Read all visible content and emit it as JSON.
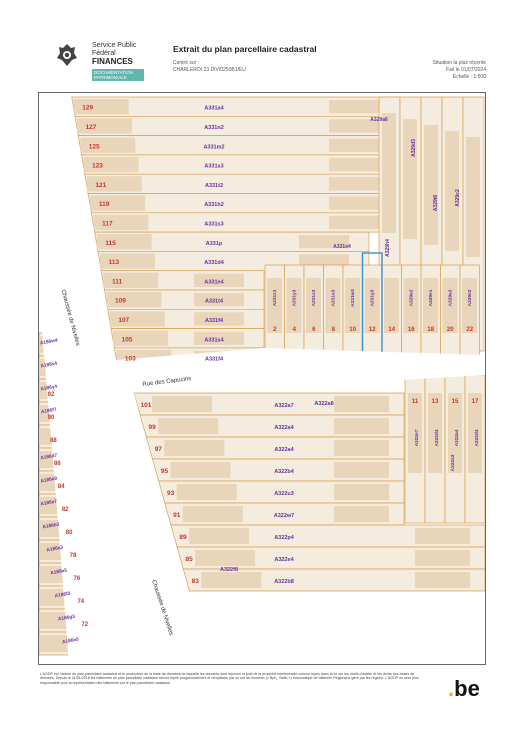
{
  "header": {
    "org_line1": "Service Public",
    "org_line2": "Fédéral",
    "org_line3": "FINANCES",
    "org_tag": "DOCUMENTATION PATRIMONIALE",
    "title": "Extrait du plan parcellaire cadastral",
    "centered_label": "Centré sur :",
    "centered_value": "CHARLEROI 23 DIV/0250B1/EU",
    "situation": "Situation la plus récente",
    "date": "Fait le 01/07/2024",
    "scale": "Échelle : 1:500"
  },
  "map": {
    "colors": {
      "parcel_fill": "#f4ecdf",
      "building_fill": "#e9d5b9",
      "parcel_line": "#d9a052",
      "road": "#ffffff",
      "number_color": "#c0392b",
      "id_color": "#6b2fa0",
      "highlight": "#3d8ec9"
    },
    "streets": [
      "Chaussée de Nivelles",
      "Rue des Capucins",
      "Chaussée de Nivelles"
    ],
    "top_rows": [
      {
        "num": "129",
        "id": "A331a4"
      },
      {
        "num": "127",
        "id": "A331n2"
      },
      {
        "num": "125",
        "id": "A331m2"
      },
      {
        "num": "123",
        "id": "A331s3"
      },
      {
        "num": "121",
        "id": "A331t2"
      },
      {
        "num": "119",
        "id": "A331h2"
      },
      {
        "num": "117",
        "id": "A331s3"
      },
      {
        "num": "115",
        "id": "A331p"
      },
      {
        "num": "113",
        "id": "A331d4"
      },
      {
        "num": "111",
        "id": "A331e4"
      },
      {
        "num": "109",
        "id": "A331t4"
      },
      {
        "num": "107",
        "id": "A331f4"
      },
      {
        "num": "105",
        "id": "A331s4"
      },
      {
        "num": "103",
        "id": "A331f4"
      }
    ],
    "mid_ids": [
      "A329a6",
      "A331e4",
      "A329h4"
    ],
    "capucins_lots": [
      {
        "num": "2",
        "id": "A331z3"
      },
      {
        "num": "4",
        "id": "A331y3"
      },
      {
        "num": "6",
        "id": "A331x3"
      },
      {
        "num": "8",
        "id": "A331v3"
      },
      {
        "num": "10",
        "id": "A331w3"
      },
      {
        "num": "12",
        "id": "A331y3"
      },
      {
        "num": "14",
        "id": ""
      },
      {
        "num": "16",
        "id": "A329e2"
      },
      {
        "num": "18",
        "id": "A329e1"
      },
      {
        "num": "20",
        "id": "A329e2"
      },
      {
        "num": "22",
        "id": "A329e2"
      }
    ],
    "top_right_ids": [
      "A329d3",
      "A329t6",
      "A329c2"
    ],
    "lower_rows": [
      {
        "num": "101",
        "id": "A322a7"
      },
      {
        "num": "99",
        "id": "A322a4"
      },
      {
        "num": "97",
        "id": "A322a4"
      },
      {
        "num": "95",
        "id": "A322b4"
      },
      {
        "num": "93",
        "id": "A322u3"
      },
      {
        "num": "91",
        "id": "A322w7"
      },
      {
        "num": "89",
        "id": "A322p4"
      },
      {
        "num": "85",
        "id": "A322e4"
      },
      {
        "num": "83",
        "id": "A322b8"
      }
    ],
    "lower_extra": {
      "top_id": "A322a8",
      "side_id": "A322f8"
    },
    "right_lower": [
      {
        "num": "11",
        "id": "A322e7"
      },
      {
        "num": "13",
        "id": "A322d4"
      },
      {
        "num": "15",
        "id": "A322a4"
      },
      {
        "num": "17",
        "id": "A322d4"
      }
    ],
    "right_lower_extra": "A322a3",
    "left_strip": [
      {
        "num": "",
        "id": "A186w4"
      },
      {
        "num": "",
        "id": "A186x4"
      },
      {
        "num": "92",
        "id": "A186y4"
      },
      {
        "num": "90",
        "id": "A186f7"
      },
      {
        "num": "88",
        "id": ""
      },
      {
        "num": "86",
        "id": "A186d7"
      },
      {
        "num": "84",
        "id": "A186a9"
      },
      {
        "num": "82",
        "id": "A186e7"
      },
      {
        "num": "80",
        "id": "A186b3"
      },
      {
        "num": "78",
        "id": "A186a3"
      },
      {
        "num": "76",
        "id": "A186e5"
      },
      {
        "num": "74",
        "id": "A186f3"
      },
      {
        "num": "72",
        "id": "A186g3"
      },
      {
        "num": "",
        "id": "A186e5"
      }
    ]
  },
  "footer": {
    "disclaimer": "L'AGDP est l'auteur du plan parcellaire cadastral et le producteur de la base de données de laquelle les données sont reprises et jouit de la propriété intellectuelle comme repris dans la loi sur les droits d'auteur et les droits des bases de données. Depuis le 01/01/2018 les bâtiments du plan parcellaire cadastral seront repris progressivement et remplacés par un set de données (« Bpn_ Batiu ») automatique de bâtiment Régionaux géré par les régions. L'AGDP ne sera plus responsable pour la représentation des bâtiments sur le plan parcellaire cadastral.",
    "logo_text": "be"
  }
}
